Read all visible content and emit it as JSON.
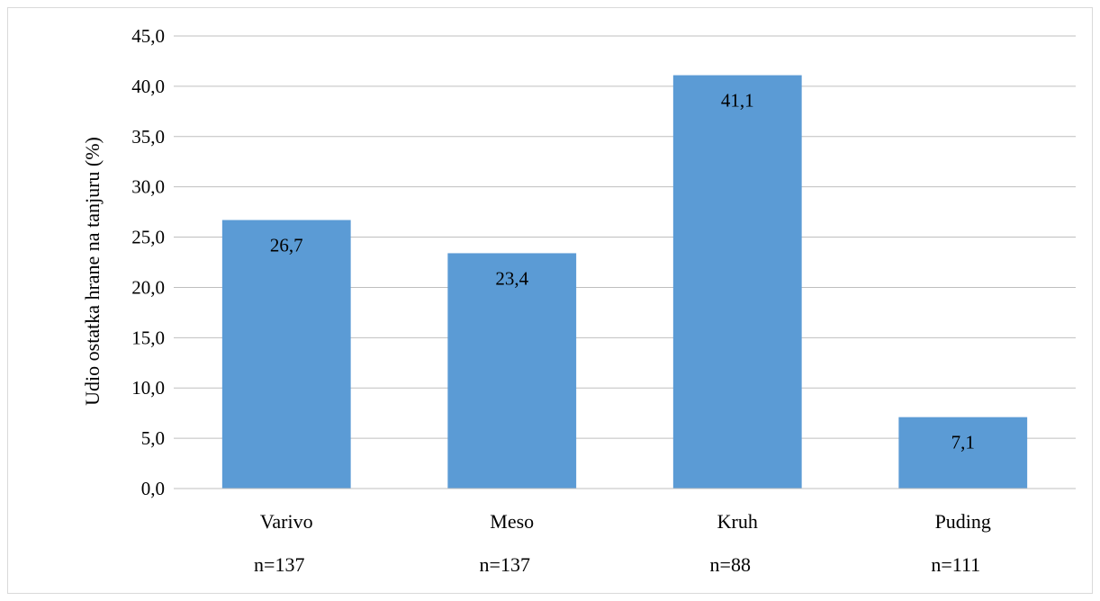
{
  "chart_data": {
    "type": "bar",
    "title": "",
    "ylabel": "Udio ostatka hrane na tanjuru (%)",
    "xlabel": "",
    "ylim": [
      0,
      45
    ],
    "ytick_step": 5,
    "yticks": [
      "0,0",
      "5,0",
      "10,0",
      "15,0",
      "20,0",
      "25,0",
      "30,0",
      "35,0",
      "40,0",
      "45,0"
    ],
    "grid": true,
    "legend": "none",
    "bar_color": "#5b9bd5",
    "categories": [
      "Varivo",
      "Meso",
      "Kruh",
      "Puding"
    ],
    "sample_sizes": [
      "n=137",
      "n=137",
      "n=88",
      "n=111"
    ],
    "values": [
      26.7,
      23.4,
      41.1,
      7.1
    ],
    "data_labels": [
      "26,7",
      "23,4",
      "41,1",
      "7,1"
    ]
  }
}
